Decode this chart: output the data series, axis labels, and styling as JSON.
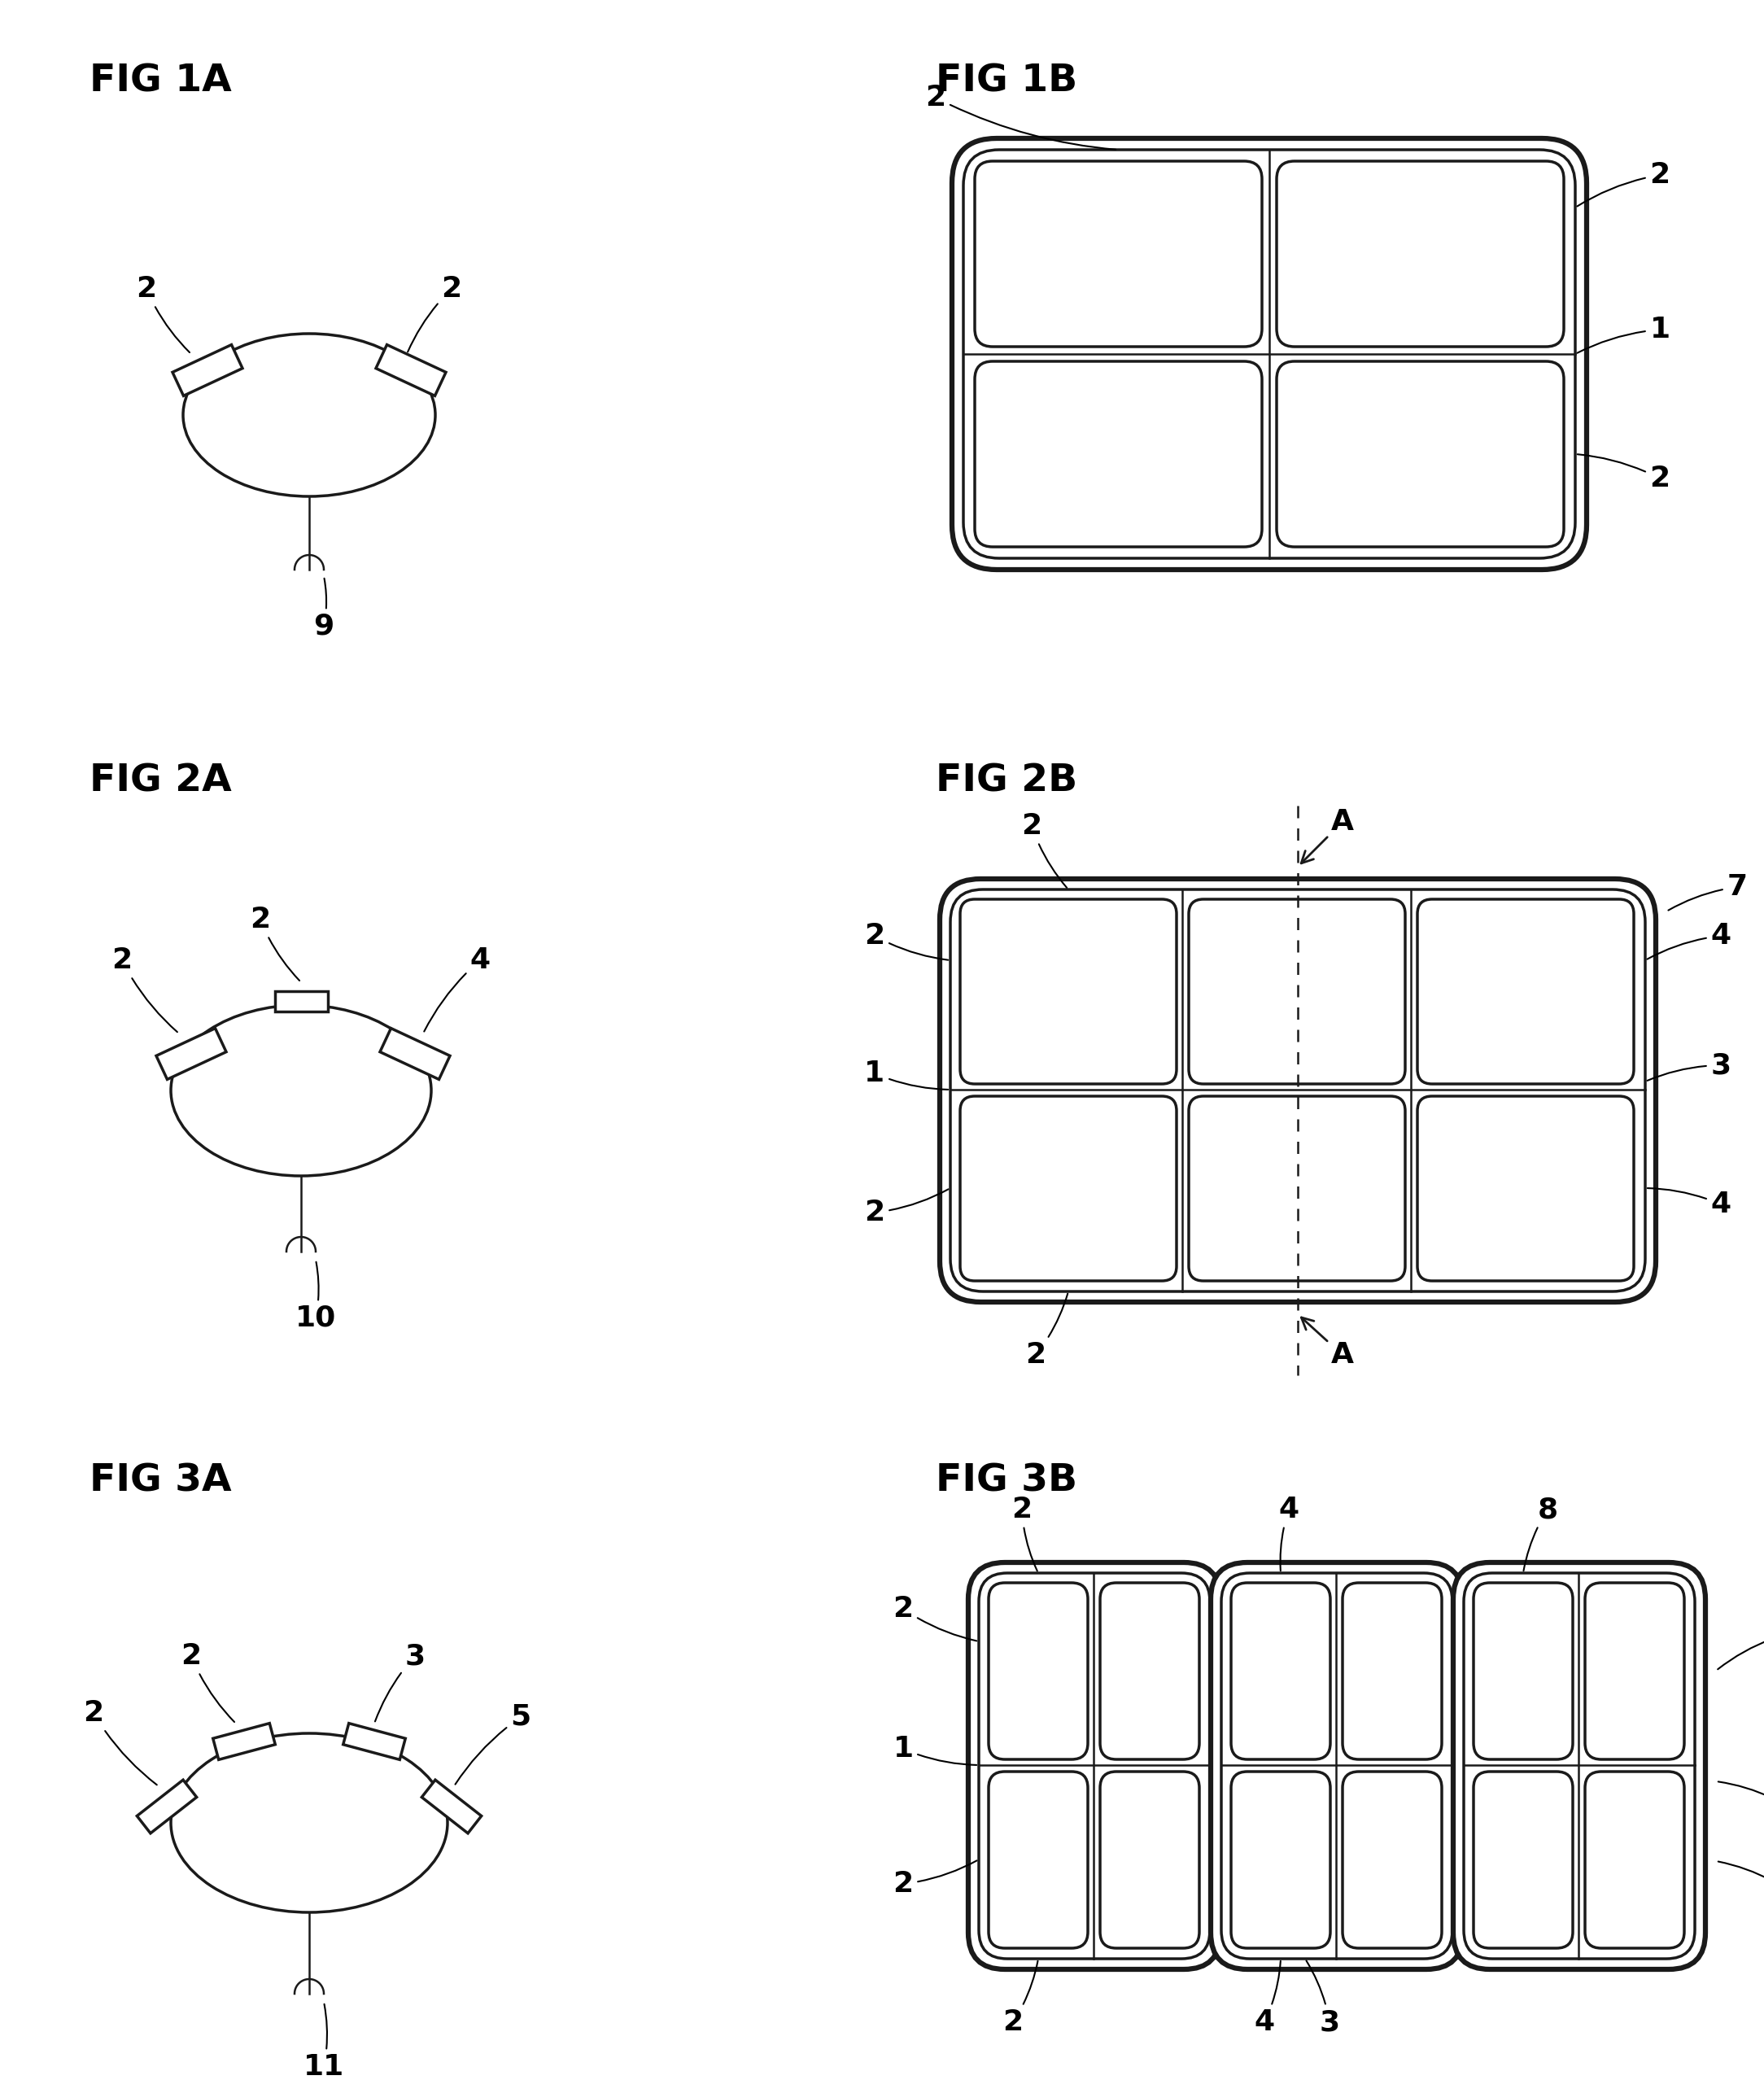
{
  "bg_color": "#ffffff",
  "line_color": "#1a1a1a",
  "lw_thin": 1.8,
  "lw_medium": 2.5,
  "lw_thick": 4.5,
  "fig_labels": {
    "fig1a": "FIG 1A",
    "fig1b": "FIG 1B",
    "fig2a": "FIG 2A",
    "fig2b": "FIG 2B",
    "fig3a": "FIG 3A",
    "fig3b": "FIG 3B"
  },
  "label_fontsize": 34,
  "annot_fontsize": 26,
  "font_family": "DejaVu Sans"
}
